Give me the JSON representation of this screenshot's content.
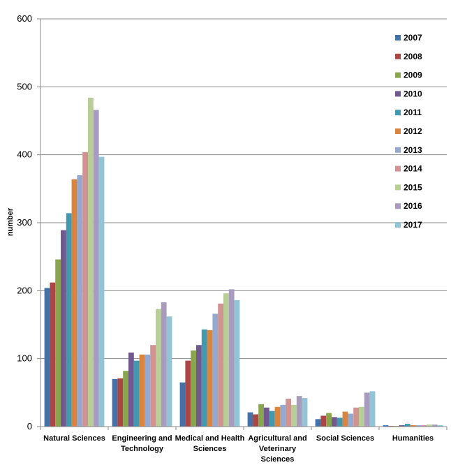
{
  "chart_data": {
    "type": "bar",
    "ylabel": "number",
    "ylim": [
      0,
      600
    ],
    "yticks": [
      0,
      100,
      200,
      300,
      400,
      500,
      600
    ],
    "grid": true,
    "legend_position": "right",
    "categories": [
      [
        "Natural Sciences"
      ],
      [
        "Engineering and",
        "Technology"
      ],
      [
        "Medical and Health",
        "Sciences"
      ],
      [
        "Agricultural and",
        "Veterinary",
        "Sciences"
      ],
      [
        "Social Sciences"
      ],
      [
        "Humanities"
      ]
    ],
    "series": [
      {
        "name": "2007",
        "color": "#4472A8",
        "values": [
          204,
          70,
          65,
          21,
          11,
          2
        ]
      },
      {
        "name": "2008",
        "color": "#AA4643",
        "values": [
          212,
          71,
          97,
          18,
          16,
          1
        ]
      },
      {
        "name": "2009",
        "color": "#89A54E",
        "values": [
          246,
          82,
          112,
          33,
          20,
          1
        ]
      },
      {
        "name": "2010",
        "color": "#71588F",
        "values": [
          289,
          109,
          120,
          28,
          14,
          2
        ]
      },
      {
        "name": "2011",
        "color": "#4198AF",
        "values": [
          314,
          97,
          143,
          23,
          13,
          4
        ]
      },
      {
        "name": "2012",
        "color": "#DB843D",
        "values": [
          364,
          106,
          142,
          29,
          22,
          2
        ]
      },
      {
        "name": "2013",
        "color": "#93A9CF",
        "values": [
          370,
          106,
          166,
          32,
          19,
          2
        ]
      },
      {
        "name": "2014",
        "color": "#D19392",
        "values": [
          404,
          120,
          181,
          41,
          28,
          2
        ]
      },
      {
        "name": "2015",
        "color": "#B9CD96",
        "values": [
          484,
          173,
          196,
          32,
          29,
          3
        ]
      },
      {
        "name": "2016",
        "color": "#A99BBD",
        "values": [
          466,
          183,
          202,
          45,
          50,
          3
        ]
      },
      {
        "name": "2017",
        "color": "#92C4D6",
        "values": [
          397,
          162,
          186,
          42,
          52,
          2
        ]
      }
    ]
  }
}
